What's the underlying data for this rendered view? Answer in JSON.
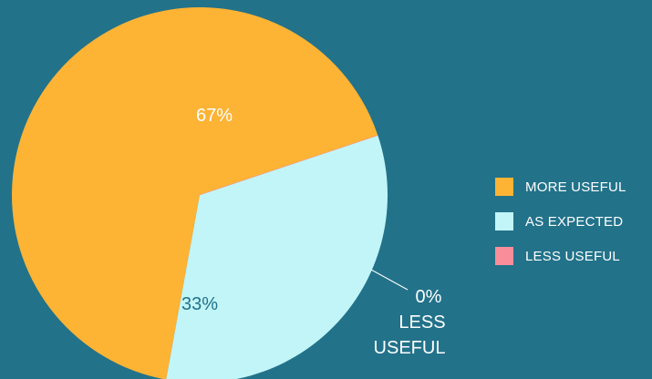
{
  "chart_data": {
    "type": "pie",
    "title": "",
    "slices": [
      {
        "label": "MORE USEFUL",
        "value": 67,
        "display": "67%",
        "color": "#FDB334",
        "text_color": "#ffffff"
      },
      {
        "label": "AS EXPECTED",
        "value": 33,
        "display": "33%",
        "color": "#C2F5F8",
        "text_color": "#22728A"
      },
      {
        "label": "LESS USEFUL",
        "value": 0,
        "display": "0%",
        "color": "#F88E9A",
        "text_color": "#ffffff"
      }
    ],
    "callout": {
      "value_text": "0%",
      "line1": "LESS",
      "line2": "USEFUL"
    },
    "legend_position": "right",
    "background": "#22728A"
  }
}
